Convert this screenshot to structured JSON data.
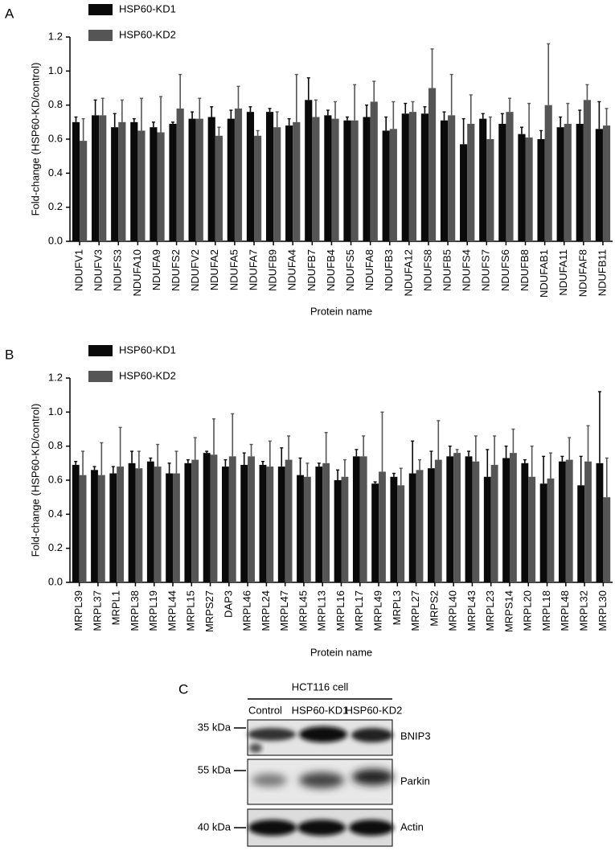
{
  "chart_data": [
    {
      "type": "bar",
      "panel_label": "A",
      "y_label": "Fold-change (HSP60-KD/control)",
      "x_label": "Protein name",
      "categories": [
        "NDUFV1",
        "NDUFV3",
        "NDUFS3",
        "NDUFA10",
        "NDUFA9",
        "NDUFS2",
        "NDUFV2",
        "NDUFA2",
        "NDUFA5",
        "NDUFA7",
        "NDUFB9",
        "NDUFA4",
        "NDUFB7",
        "NDUFB4",
        "NDUFS5",
        "NDUFA8",
        "NDUFB3",
        "NDUFA12",
        "NDUFS8",
        "NDUFB5",
        "NDUFS4",
        "NDUFS7",
        "NDUFS6",
        "NDUFB8",
        "NDUFAB1",
        "NDUFA11",
        "NDUFAF8",
        "NDUFB11"
      ],
      "series": [
        {
          "name": "HSP60-KD1",
          "color": "#0a0a0a",
          "values": [
            0.7,
            0.74,
            0.67,
            0.7,
            0.67,
            0.69,
            0.72,
            0.73,
            0.72,
            0.76,
            0.76,
            0.68,
            0.83,
            0.74,
            0.71,
            0.73,
            0.65,
            0.75,
            0.75,
            0.71,
            0.57,
            0.72,
            0.69,
            0.63,
            0.6,
            0.67,
            0.69,
            0.66
          ],
          "errors": [
            0.03,
            0.09,
            0.08,
            0.02,
            0.03,
            0.01,
            0.04,
            0.06,
            0.05,
            0.03,
            0.02,
            0.04,
            0.13,
            0.03,
            0.02,
            0.07,
            0.08,
            0.06,
            0.04,
            0.05,
            0.15,
            0.03,
            0.06,
            0.04,
            0.05,
            0.06,
            0.08,
            0.16
          ]
        },
        {
          "name": "HSP60-KD2",
          "color": "#555555",
          "values": [
            0.59,
            0.74,
            0.7,
            0.65,
            0.64,
            0.78,
            0.72,
            0.62,
            0.78,
            0.62,
            0.67,
            0.7,
            0.73,
            0.72,
            0.71,
            0.82,
            0.66,
            0.76,
            0.9,
            0.74,
            0.69,
            0.6,
            0.76,
            0.61,
            0.8,
            0.69,
            0.83,
            0.68
          ],
          "errors": [
            0.13,
            0.1,
            0.13,
            0.19,
            0.21,
            0.2,
            0.12,
            0.05,
            0.13,
            0.03,
            0.09,
            0.28,
            0.1,
            0.1,
            0.21,
            0.12,
            0.16,
            0.06,
            0.23,
            0.24,
            0.17,
            0.13,
            0.08,
            0.2,
            0.36,
            0.12,
            0.09,
            0.1
          ]
        }
      ],
      "ylim": [
        0,
        1.2
      ],
      "yticks": [
        {
          "value": 0,
          "label": "0.0"
        },
        {
          "value": 0.2,
          "label": "0.2"
        },
        {
          "value": 0.4,
          "label": "0.4"
        },
        {
          "value": 0.6,
          "label": "0.6"
        },
        {
          "value": 0.8,
          "label": "0.8"
        },
        {
          "value": 1,
          "label": "1.0"
        },
        {
          "value": 1.2,
          "label": "1.2"
        }
      ],
      "grid": false
    },
    {
      "type": "bar",
      "panel_label": "B",
      "y_label": "Fold-change (HSP60-KD/control)",
      "x_label": "Protein name",
      "categories": [
        "MRPL39",
        "MRPL37",
        "MRPL1",
        "MRPL38",
        "MRPL19",
        "MRPL44",
        "MRPL15",
        "MRPS27",
        "DAP3",
        "MRPL46",
        "MRPL24",
        "MRPL47",
        "MRPL45",
        "MRPL13",
        "MRPL16",
        "MRPL17",
        "MRPL49",
        "MRPL3",
        "MRPL27",
        "MRPS2",
        "MRPL40",
        "MRPL43",
        "MRPL23",
        "MRPS14",
        "MRPL20",
        "MRPL18",
        "MRPL48",
        "MRPL32",
        "MRPL30"
      ],
      "series": [
        {
          "name": "HSP60-KD1",
          "color": "#0a0a0a",
          "values": [
            0.69,
            0.66,
            0.64,
            0.7,
            0.71,
            0.64,
            0.7,
            0.76,
            0.68,
            0.69,
            0.69,
            0.68,
            0.63,
            0.68,
            0.6,
            0.74,
            0.58,
            0.62,
            0.64,
            0.67,
            0.74,
            0.74,
            0.62,
            0.73,
            0.7,
            0.58,
            0.71,
            0.57,
            0.7
          ],
          "errors": [
            0.02,
            0.02,
            0.04,
            0.07,
            0.02,
            0.06,
            0.02,
            0.01,
            0.04,
            0.07,
            0.02,
            0.11,
            0.1,
            0.02,
            0.06,
            0.04,
            0.01,
            0.02,
            0.19,
            0.1,
            0.06,
            0.03,
            0.16,
            0.07,
            0.02,
            0.16,
            0.03,
            0.17,
            0.42
          ]
        },
        {
          "name": "HSP60-KD2",
          "color": "#555555",
          "values": [
            0.63,
            0.63,
            0.68,
            0.67,
            0.68,
            0.64,
            0.72,
            0.75,
            0.74,
            0.74,
            0.68,
            0.72,
            0.62,
            0.7,
            0.62,
            0.74,
            0.65,
            0.57,
            0.66,
            0.72,
            0.76,
            0.71,
            0.69,
            0.76,
            0.62,
            0.61,
            0.72,
            0.71,
            0.5
          ],
          "errors": [
            0.14,
            0.19,
            0.23,
            0.1,
            0.13,
            0.13,
            0.13,
            0.21,
            0.25,
            0.07,
            0.15,
            0.14,
            0.08,
            0.18,
            0.1,
            0.12,
            0.35,
            0.1,
            0.06,
            0.23,
            0.02,
            0.15,
            0.17,
            0.14,
            0.18,
            0.15,
            0.13,
            0.21,
            0.23
          ]
        }
      ],
      "ylim": [
        0,
        1.2
      ],
      "yticks": [
        {
          "value": 0,
          "label": "0.0"
        },
        {
          "value": 0.2,
          "label": "0.2"
        },
        {
          "value": 0.4,
          "label": "0.4"
        },
        {
          "value": 0.6,
          "label": "0.6"
        },
        {
          "value": 0.8,
          "label": "0.8"
        },
        {
          "value": 1,
          "label": "1.0"
        },
        {
          "value": 1.2,
          "label": "1.2"
        }
      ],
      "grid": false
    }
  ],
  "blot": {
    "panel_label": "C",
    "header": "HCT116 cell",
    "lanes": [
      "Control",
      "HSP60-KD1",
      "HSP60-KD2"
    ],
    "markers": [
      "35 kDa",
      "55 kDa",
      "40 kDa"
    ],
    "proteins": [
      "BNIP3",
      "Parkin",
      "Actin"
    ]
  }
}
